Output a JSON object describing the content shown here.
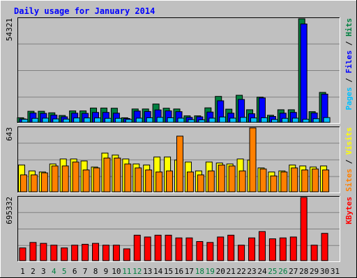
{
  "chart_data": {
    "type": "bar",
    "title": "Daily usage for January 2014",
    "categories": [
      "1",
      "2",
      "3",
      "4",
      "5",
      "6",
      "7",
      "8",
      "9",
      "10",
      "11",
      "12",
      "13",
      "14",
      "15",
      "16",
      "17",
      "18",
      "19",
      "20",
      "21",
      "22",
      "23",
      "24",
      "25",
      "26",
      "27",
      "28",
      "29",
      "30",
      "31"
    ],
    "weekend_days": [
      "4",
      "5",
      "11",
      "12",
      "18",
      "19",
      "25",
      "26"
    ],
    "panels": [
      {
        "id": "hits",
        "max_label": "54321",
        "ylim": [
          0,
          54321
        ],
        "axis_label": {
          "parts": [
            {
              "text": "Pages",
              "color": "#00c0ff"
            },
            {
              "text": " / ",
              "color": "#000000"
            },
            {
              "text": "Files",
              "color": "#0000ff"
            },
            {
              "text": " / ",
              "color": "#000000"
            },
            {
              "text": "Hits",
              "color": "#008040"
            }
          ]
        },
        "series": [
          {
            "name": "Hits",
            "color": "#008040",
            "values": [
              2400,
              5800,
              5800,
              5000,
              3600,
              6000,
              6000,
              7500,
              7500,
              7400,
              2400,
              7000,
              7000,
              9600,
              7400,
              7000,
              3400,
              3400,
              7600,
              13600,
              6900,
              14200,
              6600,
              13200,
              3700,
              6600,
              6600,
              54321,
              5600,
              15700,
              0
            ]
          },
          {
            "name": "Files",
            "color": "#0000ff",
            "values": [
              1800,
              4900,
              4700,
              3800,
              2900,
              4800,
              4700,
              5200,
              5200,
              4800,
              2000,
              5900,
              5700,
              6500,
              6000,
              5600,
              2600,
              2900,
              5400,
              11300,
              4800,
              12000,
              4500,
              12800,
              3100,
              4800,
              5200,
              51600,
              4900,
              14800,
              0
            ]
          },
          {
            "name": "Pages",
            "color": "#00c0ff",
            "values": [
              1600,
              2100,
              2200,
              1800,
              1700,
              2300,
              2300,
              2300,
              2100,
              2100,
              1500,
              2200,
              2400,
              2600,
              2400,
              2200,
              1400,
              1300,
              2200,
              2800,
              2200,
              2600,
              2300,
              2400,
              1500,
              2100,
              2200,
              1600,
              1900,
              2500,
              0
            ]
          }
        ]
      },
      {
        "id": "visits",
        "max_label": "643",
        "ylim": [
          0,
          643
        ],
        "axis_label": {
          "parts": [
            {
              "text": "Sites",
              "color": "#ff8000"
            },
            {
              "text": " / ",
              "color": "#000000"
            },
            {
              "text": "Visits",
              "color": "#ffff00"
            }
          ]
        },
        "series": [
          {
            "name": "Visits",
            "color": "#ffff00",
            "values": [
              270,
              210,
              200,
              280,
              330,
              330,
              310,
              250,
              390,
              370,
              330,
              280,
              270,
              350,
              350,
              320,
              300,
              210,
              300,
              290,
              280,
              330,
              320,
              240,
              200,
              210,
              270,
              260,
              250,
              260,
              0
            ]
          },
          {
            "name": "Sites",
            "color": "#ff8000",
            "values": [
              170,
              170,
              190,
              260,
              260,
              300,
              220,
              240,
              340,
              340,
              280,
              240,
              220,
              200,
              210,
              560,
              200,
              170,
              210,
              270,
              260,
              210,
              643,
              230,
              160,
              200,
              240,
              220,
              230,
              220,
              0
            ]
          }
        ]
      },
      {
        "id": "kbytes",
        "max_label": "695332",
        "ylim": [
          0,
          695332
        ],
        "axis_label": {
          "parts": [
            {
              "text": "KBytes",
              "color": "#ff0000"
            }
          ]
        },
        "series": [
          {
            "name": "KBytes",
            "color": "#ff0000",
            "values": [
              140000,
              200000,
              190000,
              170000,
              140000,
              170000,
              180000,
              190000,
              170000,
              170000,
              130000,
              280000,
              260000,
              280000,
              280000,
              250000,
              250000,
              210000,
              200000,
              260000,
              280000,
              170000,
              250000,
              320000,
              240000,
              250000,
              260000,
              695332,
              170000,
              300000,
              0
            ]
          }
        ]
      }
    ]
  }
}
